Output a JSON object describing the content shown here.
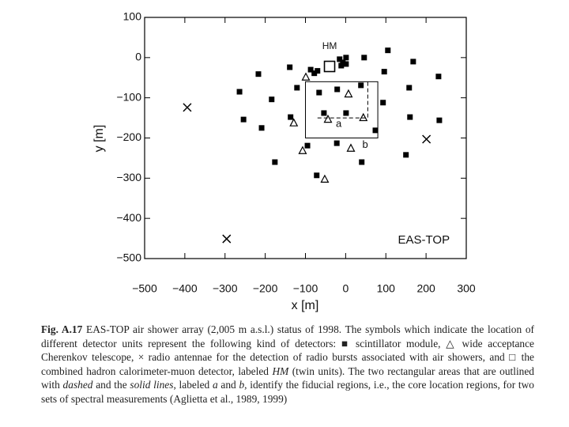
{
  "chart_data": {
    "type": "scatter",
    "xlabel": "x [m]",
    "ylabel": "y [m]",
    "xlim": [
      -500,
      300
    ],
    "xticks": [
      {
        "value": -500,
        "label": "−500"
      },
      {
        "value": -400,
        "label": "−400"
      },
      {
        "value": -300,
        "label": "−300"
      },
      {
        "value": -200,
        "label": "−200"
      },
      {
        "value": -100,
        "label": "−100"
      },
      0,
      100,
      200,
      300
    ],
    "ylim": [
      -500,
      100
    ],
    "yticks": [
      100,
      0,
      {
        "value": -100,
        "label": "−100"
      },
      {
        "value": -200,
        "label": "−200"
      },
      {
        "value": -300,
        "label": "−300"
      },
      {
        "value": -400,
        "label": "−400"
      },
      {
        "value": -500,
        "label": "−500"
      }
    ],
    "series": [
      {
        "marker": "square",
        "color": "#000000",
        "x": [
          -139,
          -217,
          -264,
          -184,
          -254,
          -209,
          -176,
          -137,
          -121,
          -87,
          -78,
          -70,
          -15,
          -7,
          1,
          -11,
          1,
          46,
          105,
          168,
          96,
          158,
          231,
          93,
          160,
          233,
          150,
          -66,
          -21,
          38,
          1,
          -54,
          74,
          -95,
          -22,
          40,
          -72
        ],
        "values": [
          -24,
          -41,
          -85,
          -104,
          -154,
          -175,
          -260,
          -148,
          -75,
          -30,
          -39,
          -33,
          -4,
          -12,
          0,
          -20,
          -16,
          0,
          18,
          -10,
          -35,
          -75,
          -47,
          -112,
          -148,
          -156,
          -242,
          -87,
          -79,
          -69,
          -138,
          -138,
          -181,
          -219,
          -213,
          -260,
          -293
        ]
      },
      {
        "marker": "triangle",
        "color": "#000000",
        "x": [
          -99,
          7,
          -129,
          -44,
          44,
          -107,
          13,
          -52
        ],
        "values": [
          -49,
          -91,
          -163,
          -154,
          -150,
          -232,
          -226,
          -303
        ]
      },
      {
        "marker": "cross",
        "color": "#000000",
        "x": [
          -394,
          201,
          -296
        ],
        "values": [
          -124,
          -203,
          -451
        ]
      },
      {
        "marker": "open-square",
        "color": "#000000",
        "x": [
          -40
        ],
        "values": [
          -22
        ]
      }
    ],
    "regions": [
      {
        "label": "a",
        "style": "dashed",
        "x": [
          -70,
          55
        ],
        "y": [
          -150,
          -60
        ]
      },
      {
        "label": "b",
        "style": "solid",
        "x": [
          -100,
          80
        ],
        "y": [
          -200,
          -60
        ]
      }
    ],
    "annotations": [
      {
        "text": "HM",
        "x": -40,
        "y": 28
      },
      {
        "text": "EAS-TOP",
        "x": 130,
        "y": -455
      }
    ],
    "caption": [
      {
        "text": "Fig. A.17",
        "bold": true
      },
      {
        "text": " EAS-TOP air shower array (2,005 m a.s.l.) status of 1998. The symbols which indicate the location of different detector units represent the following kind of detectors: ■ scintillator module, △ wide acceptance Cherenkov telescope, × radio antennae for the detection of radio bursts associated with air showers, and □ the combined hadron calorimeter-muon detector, labeled "
      },
      {
        "text": "HM",
        "italic": true
      },
      {
        "text": " (twin units). The two rectangular areas that are outlined with "
      },
      {
        "text": "dashed",
        "italic": true
      },
      {
        "text": " and the "
      },
      {
        "text": "solid lines",
        "italic": true
      },
      {
        "text": ", labeled "
      },
      {
        "text": "a",
        "italic": true
      },
      {
        "text": " and "
      },
      {
        "text": "b",
        "italic": true
      },
      {
        "text": ", identify the fiducial regions, i.e., the core location regions, for two sets of spectral measurements (Aglietta et al., 1989, 1999)"
      }
    ]
  }
}
